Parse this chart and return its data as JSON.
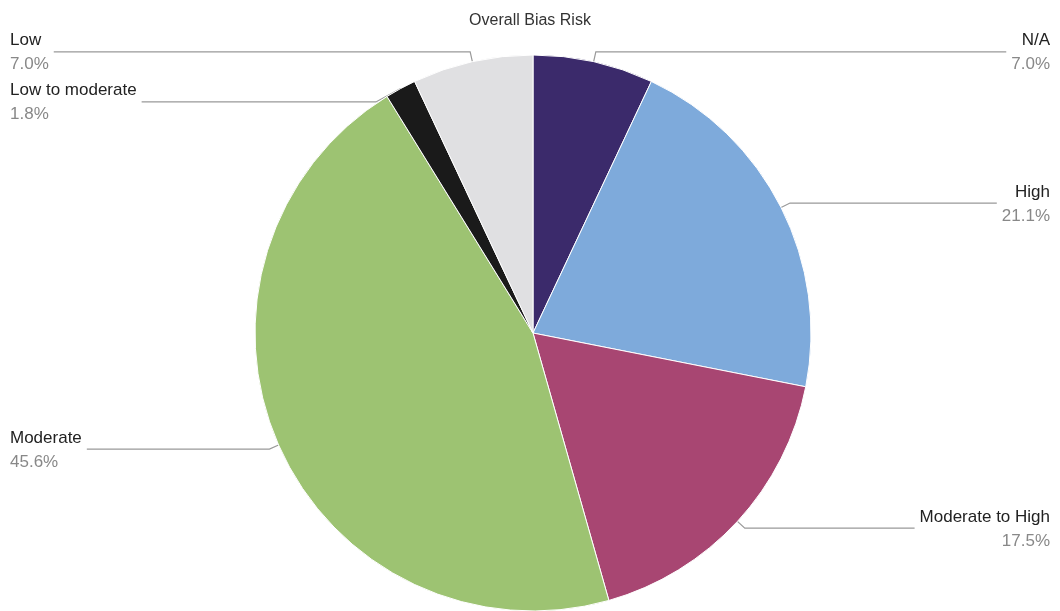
{
  "chart_data": {
    "type": "pie",
    "title": "Overall Bias Risk",
    "categories": [
      "N/A",
      "High",
      "Moderate to High",
      "Moderate",
      "Low to moderate",
      "Low"
    ],
    "values": [
      7.0,
      21.1,
      17.5,
      45.6,
      1.8,
      7.0
    ],
    "value_labels": [
      "7.0%",
      "21.1%",
      "17.5%",
      "45.6%",
      "1.8%",
      "7.0%"
    ],
    "colors": [
      "#3b2a6b",
      "#7eaadb",
      "#a84672",
      "#9dc372",
      "#1a1a1a",
      "#e0e0e2"
    ],
    "legend": false
  }
}
